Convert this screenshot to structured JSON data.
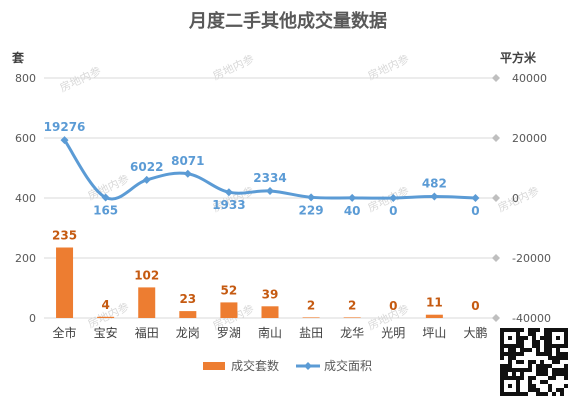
{
  "chart_data": {
    "type": "bar+line",
    "title": "月度二手其他成交量数据",
    "left_axis_unit": "套",
    "right_axis_unit": "平方米",
    "categories": [
      "全市",
      "宝安",
      "福田",
      "龙岗",
      "罗湖",
      "南山",
      "盐田",
      "龙华",
      "光明",
      "坪山",
      "大鹏"
    ],
    "series": [
      {
        "name": "成交套数",
        "type": "bar",
        "axis": "left",
        "color": "#ed7d31",
        "values": [
          235,
          4,
          102,
          23,
          52,
          39,
          2,
          2,
          0,
          11,
          0
        ]
      },
      {
        "name": "成交面积",
        "type": "line",
        "axis": "right",
        "color": "#5b9bd5",
        "values": [
          19276,
          165,
          6022,
          8071,
          1933,
          2334,
          229,
          40,
          0,
          482,
          0
        ]
      }
    ],
    "left_ylim": [
      0,
      800
    ],
    "left_ticks": [
      "0",
      "200",
      "400",
      "600",
      "800"
    ],
    "right_ylim": [
      -40000,
      40000
    ],
    "right_ticks": [
      "-40000",
      "-20000",
      "0",
      "20000",
      "40000"
    ],
    "legend_position": "bottom",
    "grid": true
  },
  "watermark": "房地内参"
}
